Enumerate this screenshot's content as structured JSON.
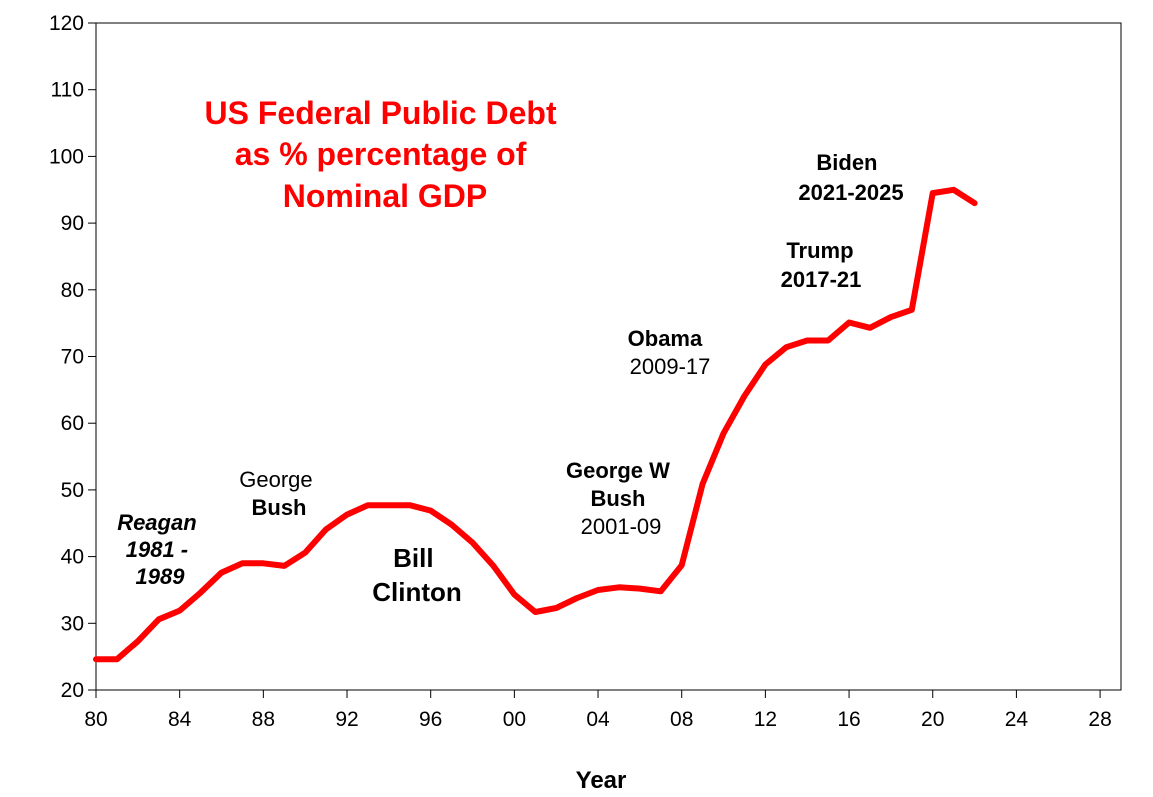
{
  "chart_data": {
    "type": "line",
    "title_lines": [
      "US   Federal Public  Debt",
      "as  % percentage of",
      "Nominal GDP"
    ],
    "xlabel": "Year",
    "ylabel": "",
    "xlim": [
      1980,
      2029
    ],
    "ylim": [
      20,
      120
    ],
    "x_ticks": [
      1980,
      1984,
      1988,
      1992,
      1996,
      2000,
      2004,
      2008,
      2012,
      2016,
      2020,
      2024,
      2028
    ],
    "x_tick_labels": [
      "80",
      "84",
      "88",
      "92",
      "96",
      "00",
      "04",
      "08",
      "12",
      "16",
      "20",
      "24",
      "28"
    ],
    "y_ticks": [
      20,
      30,
      40,
      50,
      60,
      70,
      80,
      90,
      100,
      110,
      120
    ],
    "y_tick_labels": [
      "20",
      "30",
      "40",
      "50",
      "60",
      "70",
      "80",
      "90",
      "100",
      "110",
      "120"
    ],
    "grid": false,
    "series": [
      {
        "color": "#ff0000",
        "x": [
          1980,
          1981,
          1982,
          1983,
          1984,
          1985,
          1986,
          1987,
          1988,
          1989,
          1990,
          1991,
          1992,
          1993,
          1994,
          1995,
          1996,
          1997,
          1998,
          1999,
          2000,
          2001,
          2002,
          2003,
          2004,
          2005,
          2006,
          2007,
          2008,
          2009,
          2010,
          2011,
          2012,
          2013,
          2014,
          2015,
          2016,
          2017,
          2018,
          2019,
          2020,
          2021,
          2022
        ],
        "y": [
          24.6,
          24.6,
          27.3,
          30.6,
          31.9,
          34.6,
          37.6,
          39.0,
          39.0,
          38.6,
          40.6,
          44.1,
          46.3,
          47.7,
          47.7,
          47.7,
          46.9,
          44.8,
          42.1,
          38.6,
          34.3,
          31.7,
          32.3,
          33.8,
          35.0,
          35.4,
          35.2,
          34.8,
          38.7,
          50.9,
          58.5,
          64.1,
          68.8,
          71.4,
          72.4,
          72.4,
          75.1,
          74.3,
          75.9,
          77.0,
          94.5,
          95.0,
          93.0
        ]
      }
    ],
    "annotations": [
      {
        "lines": [
          "Reagan",
          "1981 -",
          "1989"
        ],
        "x": 1983.6,
        "y": 43.6
      },
      {
        "lines": [
          "George",
          "Bush"
        ],
        "x": 1987.8,
        "y": 51.4
      },
      {
        "lines": [
          "Bill",
          "Clinton"
        ],
        "x": 1994.8,
        "y": 39.6
      },
      {
        "lines": [
          "George W",
          "Bush",
          "2001-09"
        ],
        "x": 2004.5,
        "y": 48.8
      },
      {
        "lines": [
          "Obama",
          "2009-17"
        ],
        "x": 2009.3,
        "y": 68.8
      },
      {
        "lines": [
          "Trump",
          "2017-21"
        ],
        "x": 2014.8,
        "y": 81.3
      },
      {
        "lines": [
          "Biden",
          "2021-2025"
        ],
        "x": 2018.0,
        "y": 98.6
      }
    ]
  }
}
